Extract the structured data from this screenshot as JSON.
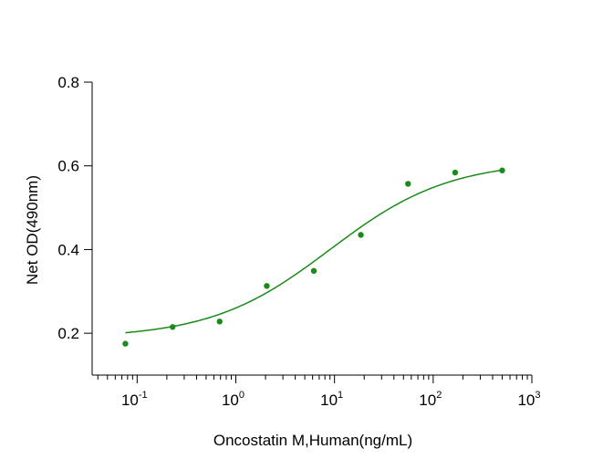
{
  "chart_data": {
    "type": "scatter",
    "xlabel": "Oncostatin M,Human(ng/mL)",
    "ylabel": "Net OD(490nm)",
    "x_scale": "log",
    "xlim": [
      0.035,
      1000
    ],
    "ylim": [
      0.1,
      0.8
    ],
    "x_ticks": [
      {
        "base": "10",
        "exp": "-1",
        "value": 0.1
      },
      {
        "base": "10",
        "exp": "0",
        "value": 1
      },
      {
        "base": "10",
        "exp": "1",
        "value": 10
      },
      {
        "base": "10",
        "exp": "2",
        "value": 100
      },
      {
        "base": "10",
        "exp": "3",
        "value": 1000
      }
    ],
    "y_ticks": [
      "0.2",
      "0.4",
      "0.6",
      "0.8"
    ],
    "grid": false,
    "color": "#1a8a1a",
    "series": [
      {
        "x": [
          0.076,
          0.229,
          0.686,
          2.06,
          6.17,
          18.5,
          55.6,
          167,
          500
        ],
        "y": [
          0.175,
          0.215,
          0.228,
          0.313,
          0.349,
          0.435,
          0.557,
          0.584,
          0.589
        ]
      }
    ],
    "fit": {
      "type": "4PL",
      "bottom": 0.188,
      "top": 0.612,
      "ec50": 9.0,
      "hill": 0.72,
      "x_range": [
        0.076,
        500
      ]
    }
  }
}
